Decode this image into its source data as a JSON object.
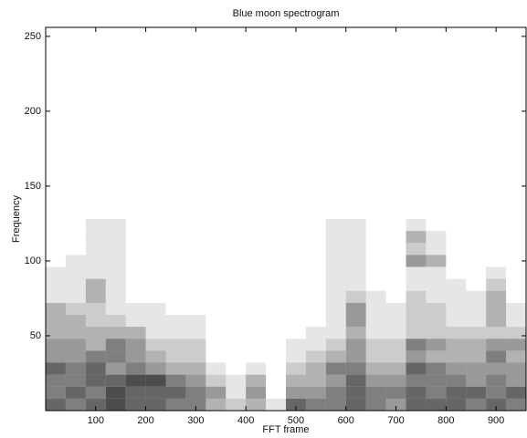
{
  "chart_data": {
    "type": "heatmap",
    "title": "Blue moon spectrogram",
    "x_label": "FFT frame",
    "y_label": "Frequency",
    "xlim": [
      0,
      960
    ],
    "ylim": [
      0,
      256
    ],
    "xticks": [
      100,
      200,
      300,
      400,
      500,
      600,
      700,
      800,
      900
    ],
    "yticks": [
      50,
      100,
      150,
      200,
      250
    ],
    "color": "#111111",
    "x_bins": [
      0,
      40,
      80,
      120,
      160,
      200,
      240,
      280,
      320,
      360,
      400,
      440,
      480,
      520,
      560,
      600,
      640,
      680,
      720,
      760,
      800,
      840,
      880,
      920,
      960
    ],
    "y_bins": [
      0,
      8,
      16,
      24,
      32,
      40,
      48,
      56,
      64,
      72,
      80,
      88,
      96,
      104,
      112,
      120,
      128
    ],
    "values": [
      [
        6,
        5,
        6,
        7,
        6,
        6,
        5,
        5,
        3,
        2,
        3,
        1,
        6,
        5,
        5,
        6,
        5,
        4,
        6,
        6,
        6,
        5,
        6,
        5
      ],
      [
        5,
        6,
        5,
        7,
        6,
        6,
        6,
        5,
        4,
        1,
        4,
        0,
        4,
        4,
        5,
        6,
        5,
        5,
        6,
        5,
        6,
        6,
        5,
        6
      ],
      [
        5,
        5,
        6,
        6,
        7,
        7,
        5,
        4,
        2,
        1,
        3,
        0,
        3,
        3,
        4,
        6,
        4,
        4,
        5,
        5,
        5,
        4,
        5,
        4
      ],
      [
        6,
        5,
        6,
        4,
        5,
        4,
        3,
        3,
        1,
        0,
        1,
        0,
        2,
        3,
        5,
        5,
        3,
        3,
        6,
        5,
        4,
        4,
        4,
        4
      ],
      [
        4,
        4,
        5,
        5,
        4,
        3,
        2,
        2,
        0,
        0,
        0,
        0,
        1,
        2,
        3,
        4,
        2,
        2,
        4,
        3,
        3,
        3,
        5,
        3
      ],
      [
        4,
        4,
        3,
        5,
        4,
        2,
        2,
        2,
        0,
        0,
        0,
        0,
        1,
        1,
        2,
        4,
        2,
        2,
        5,
        4,
        3,
        3,
        4,
        4
      ],
      [
        3,
        3,
        3,
        3,
        3,
        1,
        1,
        1,
        0,
        0,
        0,
        0,
        0,
        1,
        1,
        3,
        1,
        1,
        2,
        2,
        2,
        2,
        2,
        2
      ],
      [
        3,
        3,
        2,
        2,
        1,
        1,
        1,
        1,
        0,
        0,
        0,
        0,
        0,
        0,
        1,
        4,
        1,
        1,
        2,
        2,
        1,
        1,
        3,
        1
      ],
      [
        3,
        2,
        2,
        1,
        1,
        1,
        0,
        0,
        0,
        0,
        0,
        0,
        0,
        0,
        1,
        4,
        1,
        1,
        2,
        2,
        1,
        1,
        3,
        1
      ],
      [
        1,
        1,
        3,
        1,
        0,
        0,
        0,
        0,
        0,
        0,
        0,
        0,
        0,
        0,
        1,
        2,
        1,
        0,
        2,
        1,
        1,
        1,
        3,
        0
      ],
      [
        1,
        1,
        3,
        1,
        0,
        0,
        0,
        0,
        0,
        0,
        0,
        0,
        0,
        0,
        1,
        1,
        0,
        0,
        1,
        1,
        1,
        0,
        2,
        0
      ],
      [
        1,
        1,
        1,
        1,
        0,
        0,
        0,
        0,
        0,
        0,
        0,
        0,
        0,
        0,
        1,
        1,
        0,
        0,
        1,
        1,
        0,
        0,
        1,
        0
      ],
      [
        0,
        1,
        1,
        1,
        0,
        0,
        0,
        0,
        0,
        0,
        0,
        0,
        0,
        0,
        1,
        1,
        0,
        0,
        4,
        3,
        0,
        0,
        0,
        0
      ],
      [
        0,
        0,
        1,
        1,
        0,
        0,
        0,
        0,
        0,
        0,
        0,
        0,
        0,
        0,
        1,
        1,
        0,
        0,
        2,
        1,
        0,
        0,
        0,
        0
      ],
      [
        0,
        0,
        1,
        1,
        0,
        0,
        0,
        0,
        0,
        0,
        0,
        0,
        0,
        0,
        1,
        1,
        0,
        0,
        3,
        1,
        0,
        0,
        0,
        0
      ],
      [
        0,
        0,
        1,
        1,
        0,
        0,
        0,
        0,
        0,
        0,
        0,
        0,
        0,
        0,
        1,
        1,
        0,
        0,
        1,
        0,
        0,
        0,
        0,
        0
      ]
    ]
  }
}
